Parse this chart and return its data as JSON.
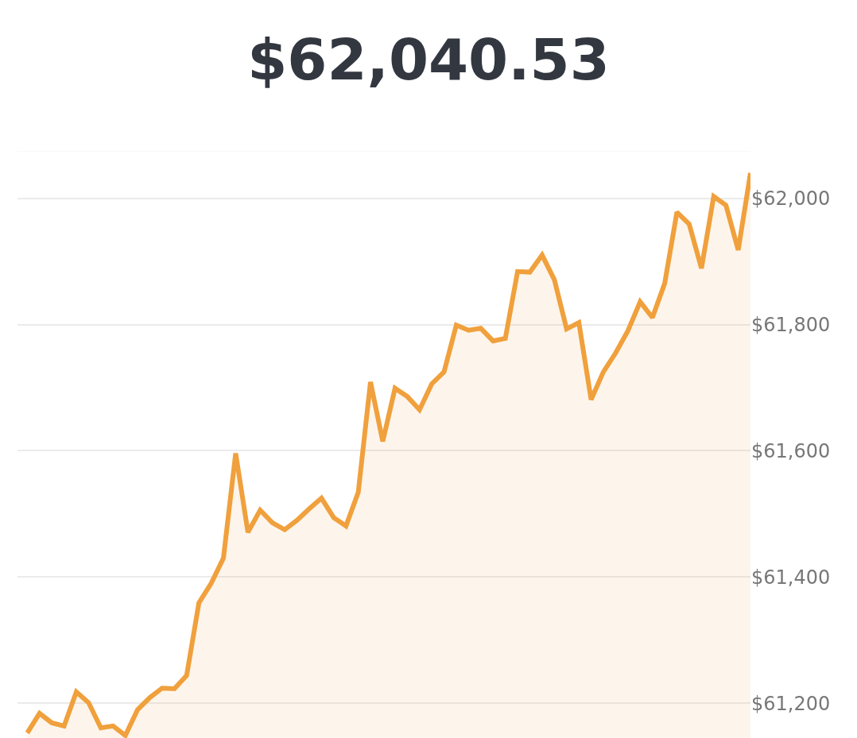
{
  "chart_data": {
    "type": "area",
    "title": "$62,040.53",
    "categories": [
      null,
      null,
      null,
      null,
      null,
      null,
      null,
      null,
      null,
      null,
      null,
      null,
      null,
      null,
      null,
      null,
      null,
      null,
      null,
      null,
      null,
      null,
      null,
      null,
      null,
      null,
      null,
      null,
      null,
      null,
      null,
      null,
      null,
      null,
      null,
      null,
      null,
      null,
      null,
      null,
      null,
      null,
      null,
      null,
      null,
      null,
      null,
      null,
      null,
      null,
      null,
      null,
      null,
      null,
      null,
      null,
      null,
      null,
      null,
      null
    ],
    "series": [
      {
        "color": "#f0a03c",
        "values": [
          61153,
          61184,
          61169,
          61164,
          61218,
          61201,
          61161,
          61164,
          61149,
          61190,
          61209,
          61224,
          61223,
          61244,
          61359,
          61390,
          61430,
          61596,
          61471,
          61506,
          61486,
          61475,
          61490,
          61508,
          61525,
          61494,
          61481,
          61534,
          61709,
          61615,
          61699,
          61686,
          61665,
          61706,
          61725,
          61799,
          61791,
          61794,
          61774,
          61778,
          61884,
          61883,
          61910,
          61871,
          61793,
          61803,
          61681,
          61725,
          61755,
          61790,
          61836,
          61811,
          61865,
          61978,
          61959,
          61889,
          62003,
          61989,
          61918,
          62040
        ]
      }
    ],
    "ylim": [
      61145,
      62075
    ],
    "yticks": [
      {
        "value": 61200,
        "label": "$61,200"
      },
      {
        "value": 61400,
        "label": "$61,400"
      },
      {
        "value": 61600,
        "label": "$61,600"
      },
      {
        "value": 61800,
        "label": "$61,800"
      },
      {
        "value": 62000,
        "label": "$62,000"
      }
    ],
    "grid": "y"
  }
}
